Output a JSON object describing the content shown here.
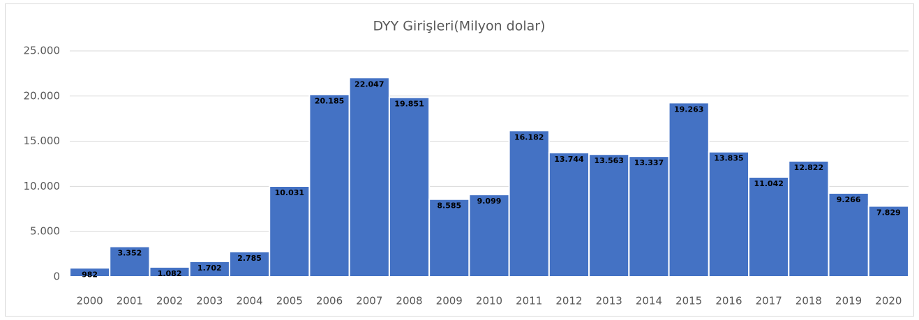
{
  "chart_data": {
    "type": "bar",
    "title": "DYY Girişleri(Milyon dolar)",
    "categories": [
      "2000",
      "2001",
      "2002",
      "2003",
      "2004",
      "2005",
      "2006",
      "2007",
      "2008",
      "2009",
      "2010",
      "2011",
      "2012",
      "2013",
      "2014",
      "2015",
      "2016",
      "2017",
      "2018",
      "2019",
      "2020"
    ],
    "values": [
      982,
      3352,
      1082,
      1702,
      2785,
      10031,
      20185,
      22047,
      19851,
      8585,
      9099,
      16182,
      13744,
      13563,
      13337,
      19263,
      13835,
      11042,
      12822,
      9266,
      7829
    ],
    "value_labels": [
      "982",
      "3.352",
      "1.082",
      "1.702",
      "2.785",
      "10.031",
      "20.185",
      "22.047",
      "19.851",
      "8.585",
      "9.099",
      "16.182",
      "13.744",
      "13.563",
      "13.337",
      "19.263",
      "13.835",
      "11.042",
      "12.822",
      "9.266",
      "7.829"
    ],
    "color": "#4472c4",
    "ylim": [
      0,
      25000
    ],
    "yticks": [
      0,
      {
        "value": 5000,
        "label": "5.000"
      },
      {
        "value": 10000,
        "label": "10.000"
      },
      {
        "value": 15000,
        "label": "15.000"
      },
      {
        "value": 20000,
        "label": "20.000"
      },
      {
        "value": 25000,
        "label": "25.000"
      }
    ],
    "grid": true
  }
}
